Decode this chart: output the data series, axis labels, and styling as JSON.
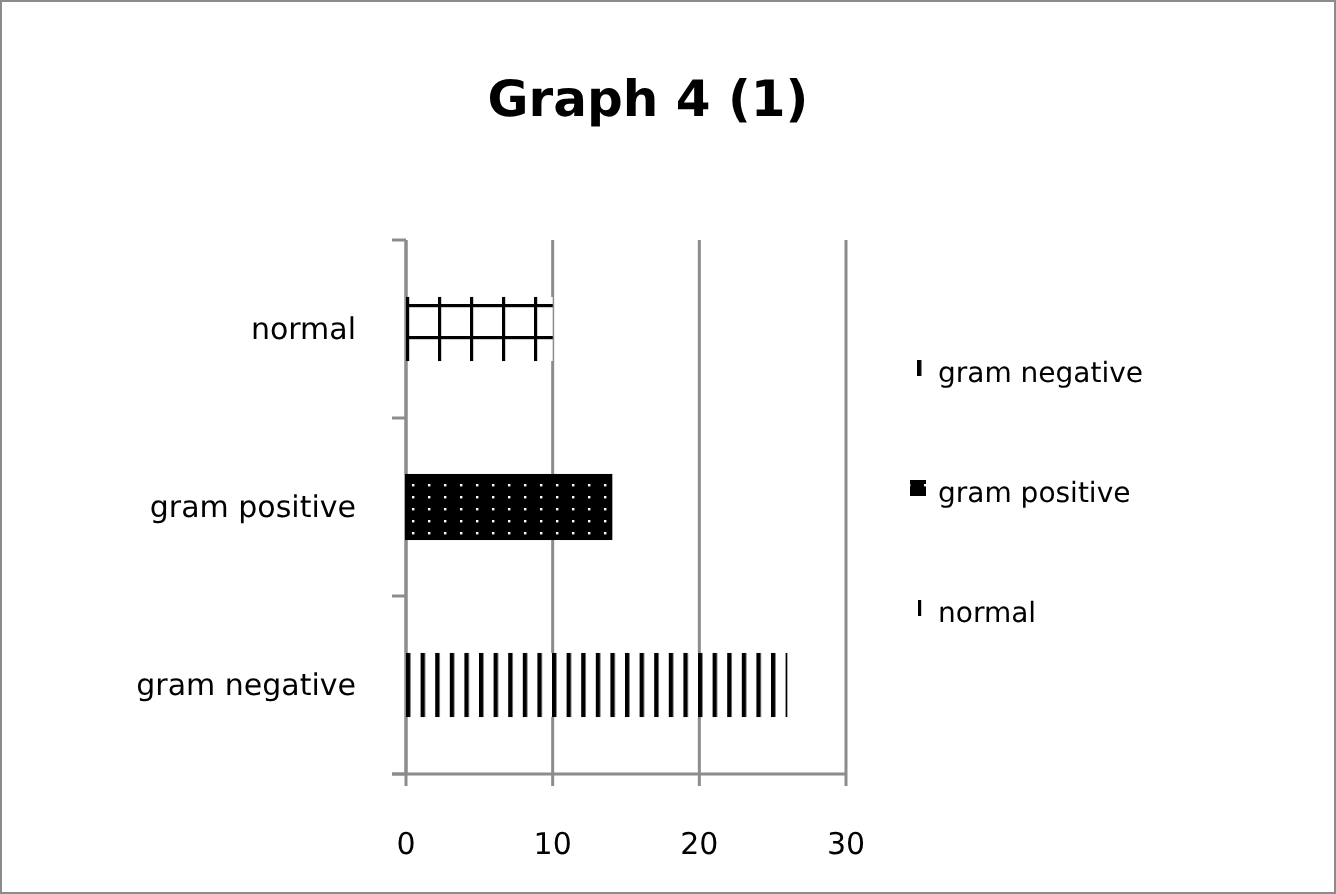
{
  "chart_data": {
    "type": "bar",
    "title": "Graph 4 (1)",
    "orientation": "horizontal",
    "categories": [
      "normal",
      "gram positive",
      "gram negative"
    ],
    "series": [
      {
        "name": "gram negative",
        "color": "#000000",
        "values": [
          null,
          null,
          26
        ]
      },
      {
        "name": "gram positive",
        "color": "#000000",
        "values": [
          null,
          14,
          null
        ]
      },
      {
        "name": "normal",
        "color": "#000000",
        "values": [
          10,
          null,
          null
        ]
      }
    ],
    "xlim": [
      0,
      30
    ],
    "xticks": [
      0,
      10,
      20,
      30
    ],
    "grid": "x",
    "legend": "right"
  }
}
